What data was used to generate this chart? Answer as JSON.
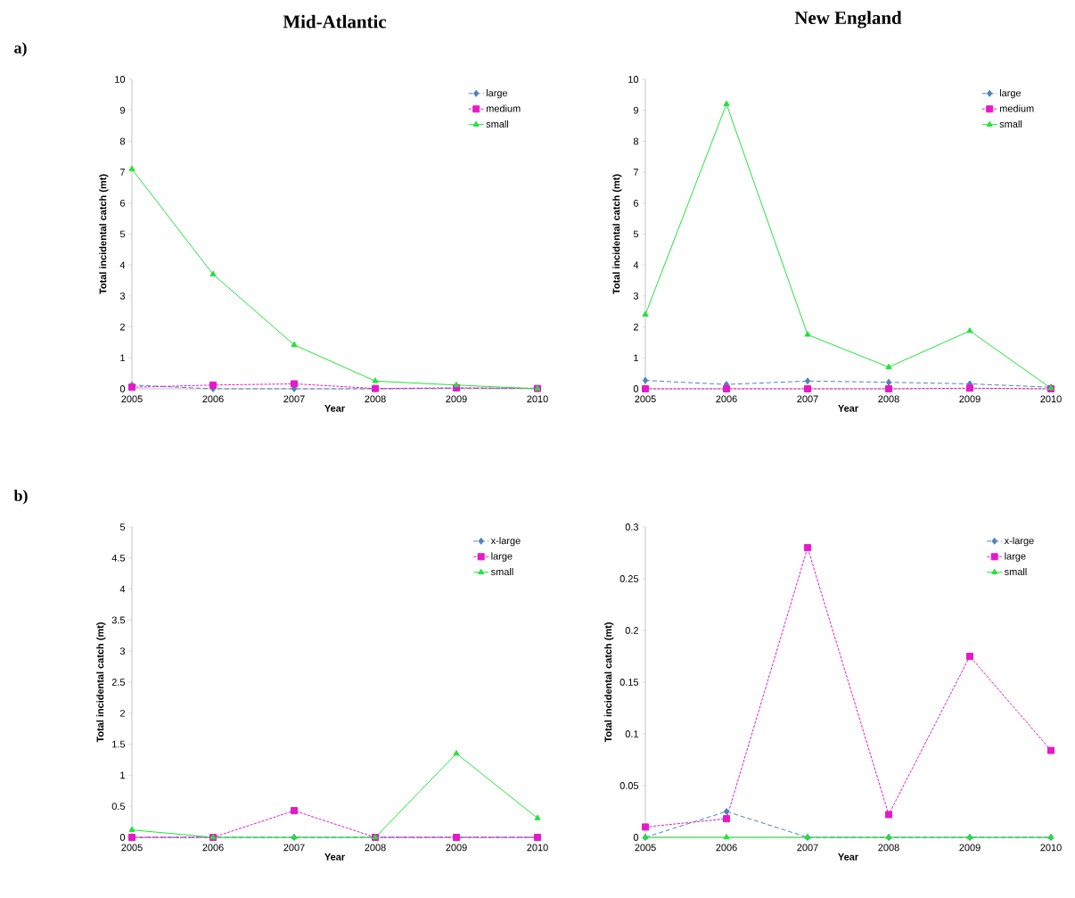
{
  "chart_data": [
    {
      "type": "line",
      "title": "Mid-Atlantic",
      "annotations": [
        "a)"
      ],
      "xlabel": "Year",
      "ylabel": "Total incidental catch (mt)",
      "x": [
        2005,
        2006,
        2007,
        2008,
        2009,
        2010
      ],
      "xlim": [
        2005,
        2010
      ],
      "xticks": [
        2005,
        2006,
        2007,
        2008,
        2009,
        2010
      ],
      "ylim": [
        0,
        10
      ],
      "yticks": [
        0,
        1,
        2,
        3,
        4,
        5,
        6,
        7,
        8,
        9,
        10
      ],
      "legend": "top right",
      "series": [
        {
          "name": "large",
          "color": "#4f81bd",
          "marker": "diamond",
          "line_style": "dashed",
          "values": [
            0.12,
            0,
            0,
            0,
            0.02,
            0.02
          ]
        },
        {
          "name": "medium",
          "color": "#e619c8",
          "marker": "square",
          "line_style": "dotted",
          "values": [
            0.05,
            0.12,
            0.16,
            0.01,
            0.03,
            0.01
          ]
        },
        {
          "name": "small",
          "color": "#22e33a",
          "marker": "triangle",
          "line_style": "solid",
          "values": [
            7.1,
            3.7,
            1.42,
            0.25,
            0.12,
            0
          ]
        }
      ]
    },
    {
      "type": "line",
      "title": "New England",
      "xlabel": "Year",
      "ylabel": "Total incidental catch (mt)",
      "x": [
        2005,
        2006,
        2007,
        2008,
        2009,
        2010
      ],
      "xlim": [
        2005,
        2010
      ],
      "xticks": [
        2005,
        2006,
        2007,
        2008,
        2009,
        2010
      ],
      "ylim": [
        0,
        10
      ],
      "yticks": [
        0,
        1,
        2,
        3,
        4,
        5,
        6,
        7,
        8,
        9,
        10
      ],
      "legend": "top right",
      "series": [
        {
          "name": "large",
          "color": "#4f81bd",
          "marker": "diamond",
          "line_style": "dashed",
          "values": [
            0.27,
            0.14,
            0.25,
            0.21,
            0.16,
            0.05
          ]
        },
        {
          "name": "medium",
          "color": "#e619c8",
          "marker": "square",
          "line_style": "dotted",
          "values": [
            0,
            0,
            0,
            0,
            0.02,
            0
          ]
        },
        {
          "name": "small",
          "color": "#22e33a",
          "marker": "triangle",
          "line_style": "solid",
          "values": [
            2.4,
            9.2,
            1.75,
            0.7,
            1.87,
            0.02
          ]
        }
      ]
    },
    {
      "type": "line",
      "annotations": [
        "b)"
      ],
      "xlabel": "Year",
      "ylabel": "Total incidental catch (mt)",
      "x": [
        2005,
        2006,
        2007,
        2008,
        2009,
        2010
      ],
      "xlim": [
        2005,
        2010
      ],
      "xticks": [
        2005,
        2006,
        2007,
        2008,
        2009,
        2010
      ],
      "ylim": [
        0,
        5
      ],
      "yticks": [
        0,
        0.5,
        1,
        1.5,
        2,
        2.5,
        3,
        3.5,
        4,
        4.5,
        5
      ],
      "legend": "top right",
      "series": [
        {
          "name": "x-large",
          "color": "#4f81bd",
          "marker": "diamond",
          "line_style": "dashed",
          "values": [
            0,
            0,
            0,
            0,
            0,
            0
          ]
        },
        {
          "name": "large",
          "color": "#e619c8",
          "marker": "square",
          "line_style": "dotted",
          "values": [
            0,
            0,
            0.43,
            0,
            0,
            0
          ]
        },
        {
          "name": "small",
          "color": "#22e33a",
          "marker": "triangle",
          "line_style": "solid",
          "values": [
            0.12,
            0,
            0,
            0,
            1.35,
            0.31
          ]
        }
      ]
    },
    {
      "type": "line",
      "xlabel": "Year",
      "ylabel": "Total incidental catch (mt)",
      "x": [
        2005,
        2006,
        2007,
        2008,
        2009,
        2010
      ],
      "xlim": [
        2005,
        2010
      ],
      "xticks": [
        2005,
        2006,
        2007,
        2008,
        2009,
        2010
      ],
      "ylim": [
        0,
        0.3
      ],
      "yticks": [
        0,
        0.05,
        0.1,
        0.15,
        0.2,
        0.25,
        0.3
      ],
      "legend": "top right",
      "series": [
        {
          "name": "x-large",
          "color": "#4f81bd",
          "marker": "diamond",
          "line_style": "dashed",
          "values": [
            0,
            0.025,
            0,
            0,
            0,
            0
          ]
        },
        {
          "name": "large",
          "color": "#e619c8",
          "marker": "square",
          "line_style": "dotted",
          "values": [
            0.01,
            0.018,
            0.28,
            0.022,
            0.175,
            0.084
          ]
        },
        {
          "name": "small",
          "color": "#22e33a",
          "marker": "triangle",
          "line_style": "solid",
          "values": [
            0,
            0,
            0,
            0,
            0,
            0
          ]
        }
      ]
    }
  ]
}
